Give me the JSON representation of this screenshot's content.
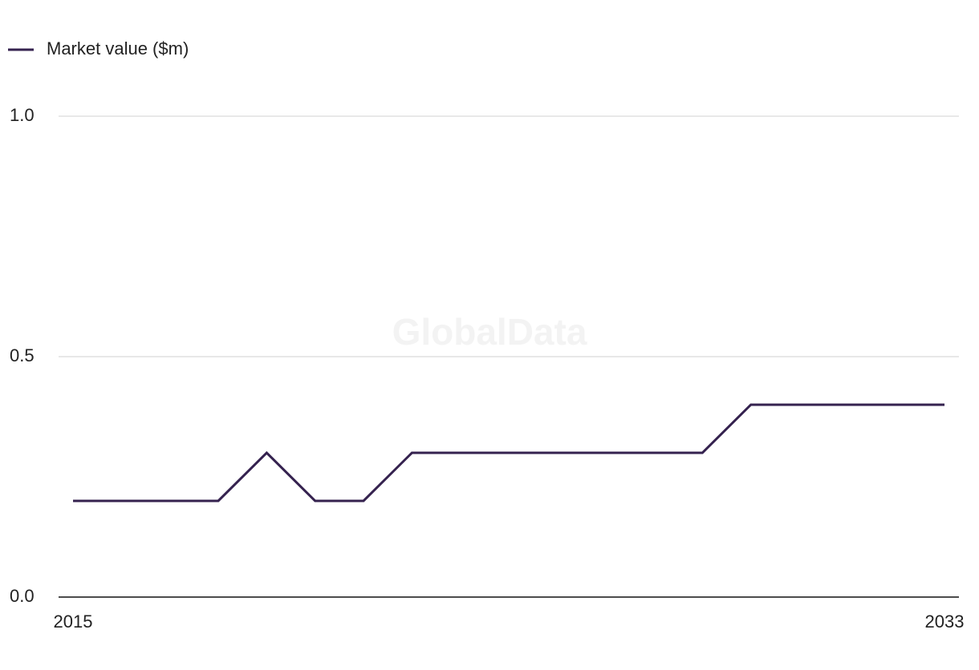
{
  "chart_data": {
    "type": "line",
    "watermark": "GlobalData",
    "x": [
      2015,
      2016,
      2017,
      2018,
      2019,
      2020,
      2021,
      2022,
      2023,
      2024,
      2025,
      2026,
      2027,
      2028,
      2029,
      2030,
      2031,
      2032,
      2033
    ],
    "series": [
      {
        "name": "Market value ($m)",
        "color": "#35224f",
        "values": [
          0.2,
          0.2,
          0.2,
          0.2,
          0.3,
          0.2,
          0.2,
          0.3,
          0.3,
          0.3,
          0.3,
          0.3,
          0.3,
          0.3,
          0.4,
          0.4,
          0.4,
          0.4,
          0.4
        ]
      }
    ],
    "xlim": [
      2015,
      2033
    ],
    "xticks": [
      2015,
      2033
    ],
    "ylim": [
      0,
      1
    ],
    "yticks": [
      {
        "value": 0,
        "label": "0.0"
      },
      0.5,
      {
        "value": 1,
        "label": "1.0"
      }
    ],
    "grid": true,
    "legend": "top-left"
  }
}
